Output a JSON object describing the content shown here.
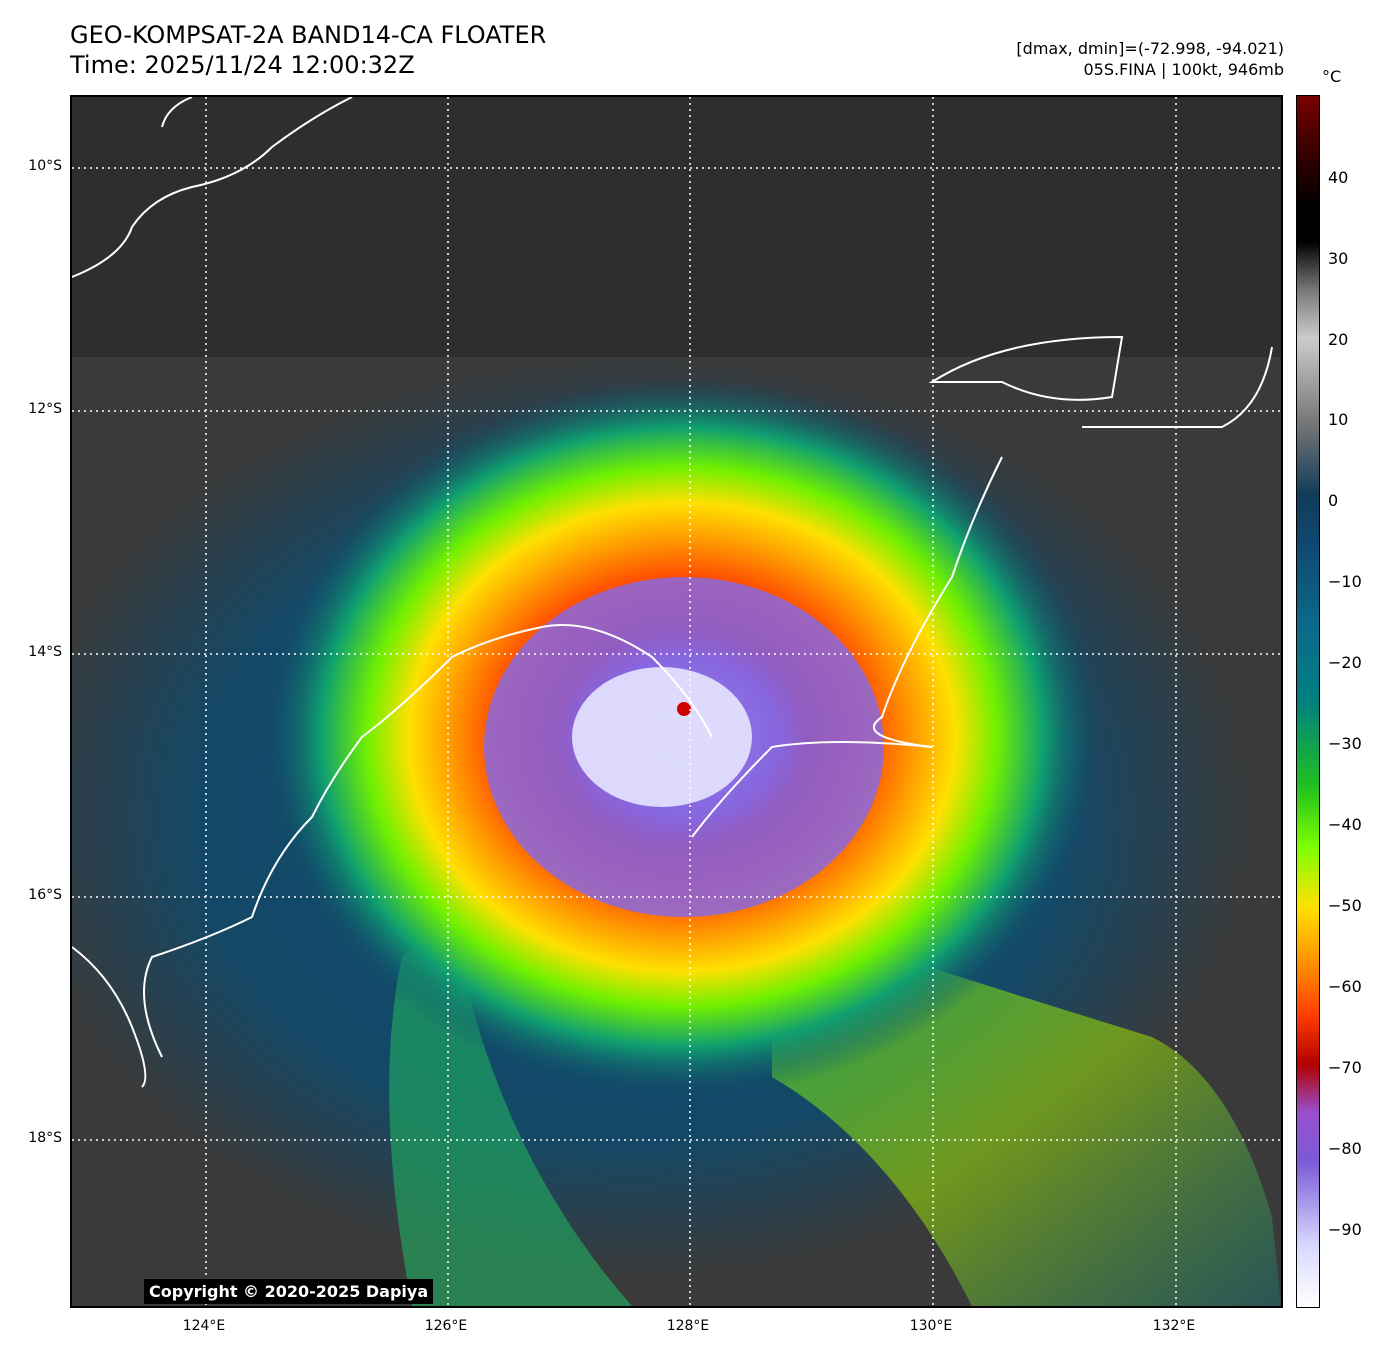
{
  "header": {
    "title_line1": "GEO-KOMPSAT-2A BAND14-CA FLOATER",
    "title_line2": "Time: 2025/11/24 12:00:32Z",
    "meta_line1": "[dmax, dmin]=(-72.998, -94.021)",
    "meta_line2": "05S.FINA | 100kt, 946mb"
  },
  "colorbar": {
    "unit": "°C",
    "ticks": [
      "40",
      "30",
      "20",
      "10",
      "0",
      "−10",
      "−20",
      "−30",
      "−40",
      "−50",
      "−60",
      "−70",
      "−80",
      "−90"
    ]
  },
  "axes": {
    "lat_labels": [
      "10°S",
      "12°S",
      "14°S",
      "16°S",
      "18°S"
    ],
    "lon_labels": [
      "124°E",
      "126°E",
      "128°E",
      "130°E",
      "132°E"
    ]
  },
  "copyright": "Copyright © 2020-2025 Dapiya"
}
